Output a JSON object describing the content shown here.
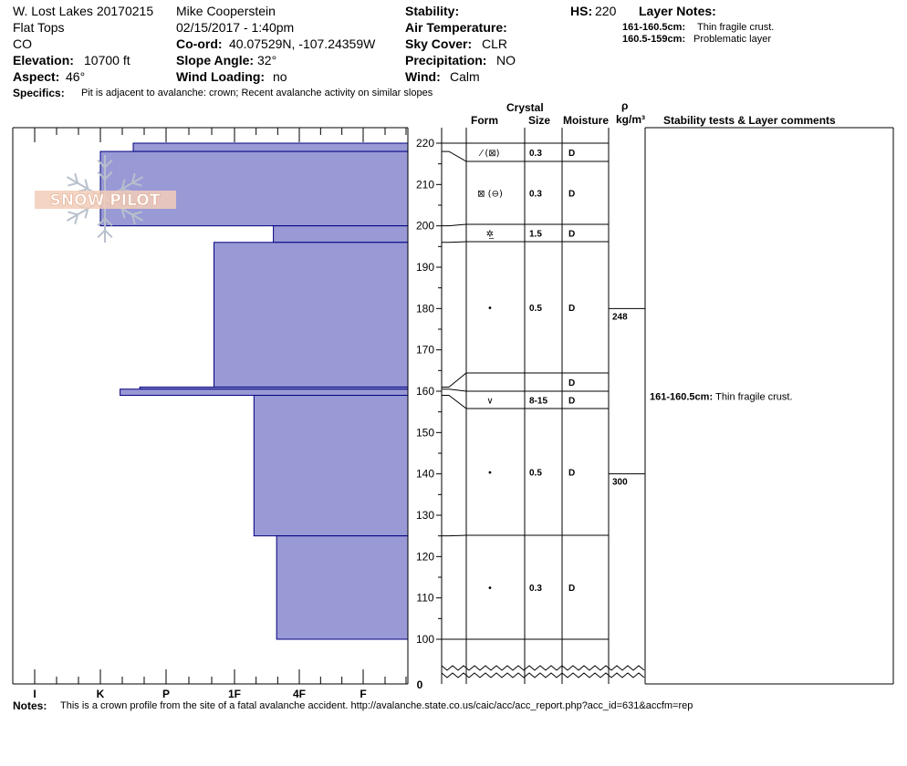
{
  "header": {
    "pit_name": "W. Lost Lakes 20170215",
    "range": "Flat Tops",
    "state": "CO",
    "elevation_label": "Elevation:",
    "elevation_value": "10700 ft",
    "aspect_label": "Aspect:",
    "aspect_value": "46°",
    "observer": "Mike Cooperstein",
    "datetime": "02/15/2017 - 1:40pm",
    "coord_label": "Co-ord:",
    "coord_value": "40.07529N, -107.24359W",
    "slope_label": "Slope Angle:",
    "slope_value": "32°",
    "wind_loading_label": "Wind Loading:",
    "wind_loading_value": "no",
    "stability_label": "Stability:",
    "air_temp_label": "Air Temperature:",
    "sky_label": "Sky Cover:",
    "sky_value": "CLR",
    "precip_label": "Precipitation:",
    "precip_value": "NO",
    "wind_label": "Wind:",
    "wind_value": "Calm",
    "hs_label": "HS:",
    "hs_value": "220",
    "layer_notes_label": "Layer Notes:",
    "layer_notes": [
      {
        "range": "161-160.5cm:",
        "text": "Thin fragile crust."
      },
      {
        "range": "160.5-159cm:",
        "text": "Problematic layer"
      }
    ],
    "specifics_label": "Specifics:",
    "specifics_value": "Pit is adjacent to avalanche: crown; Recent avalanche activity on similar slopes"
  },
  "columns": {
    "crystal": "Crystal",
    "form": "Form",
    "size": "Size",
    "moisture": "Moisture",
    "rho": "ρ",
    "density_unit": "kg/m³",
    "comments": "Stability tests & Layer comments"
  },
  "logo": {
    "text": "SNOW PILOT"
  },
  "notes": {
    "label": "Notes:",
    "text": "This is a crown profile from the site of a fatal avalanche accident. http://avalanche.state.co.us/caic/acc/acc_report.php?acc_id=631&accfm=rep"
  },
  "stability_comments": [
    {
      "height": 160.5,
      "range": "161-160.5cm:",
      "text": "Thin fragile crust."
    }
  ],
  "chart_data": {
    "type": "bar",
    "orientation": "horizontal",
    "hardness_ticks": [
      "I",
      "K",
      "P",
      "1F",
      "4F",
      "F"
    ],
    "height_ticks": [
      220,
      210,
      200,
      190,
      180,
      170,
      160,
      150,
      140,
      130,
      120,
      110,
      100,
      0
    ],
    "y_range": [
      100,
      220
    ],
    "hardness_profile": [
      {
        "top": 220,
        "bottom": 218,
        "hardness": 1.5
      },
      {
        "top": 218,
        "bottom": 200,
        "hardness": 1.0
      },
      {
        "top": 200,
        "bottom": 196,
        "hardness": 3.6
      },
      {
        "top": 196,
        "bottom": 161,
        "hardness": 2.7
      },
      {
        "top": 161,
        "bottom": 160.5,
        "hardness": 1.6
      },
      {
        "top": 160.5,
        "bottom": 159,
        "hardness": 1.3
      },
      {
        "top": 159,
        "bottom": 125,
        "hardness": 3.3
      },
      {
        "top": 125,
        "bottom": 100,
        "hardness": 3.65
      }
    ],
    "layers": [
      {
        "top": 220,
        "bottom": 218,
        "form": "⁄ (⊠)",
        "size": "0.3",
        "moisture": "D"
      },
      {
        "top": 218,
        "bottom": 200,
        "form": "⊠ (⊖)",
        "size": "0.3",
        "moisture": "D"
      },
      {
        "top": 200,
        "bottom": 196,
        "form": "✲̲",
        "size": "1.5",
        "moisture": "D"
      },
      {
        "top": 196,
        "bottom": 161,
        "form": "•",
        "size": "0.5",
        "moisture": "D"
      },
      {
        "top": 161,
        "bottom": 160.5,
        "form": "",
        "size": "",
        "moisture": "D"
      },
      {
        "top": 160.5,
        "bottom": 159,
        "form": "∨",
        "size": "8-15",
        "moisture": "D"
      },
      {
        "top": 159,
        "bottom": 125,
        "form": "•",
        "size": "0.5",
        "moisture": "D"
      },
      {
        "top": 125,
        "bottom": 100,
        "form": "•",
        "size": "0.3",
        "moisture": "D"
      }
    ],
    "densities": [
      {
        "height": 180,
        "value": "248"
      },
      {
        "height": 140,
        "value": "300"
      }
    ],
    "colors": {
      "fill": "#9999d6",
      "edge": "#000080"
    }
  }
}
